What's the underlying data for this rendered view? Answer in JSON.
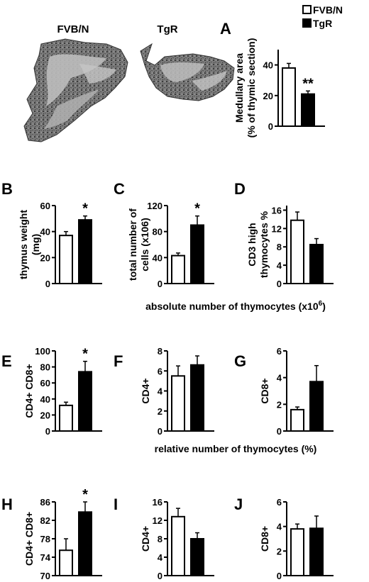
{
  "figure": {
    "image_labels": {
      "fvb": "FVB/N",
      "tgr": "TgR"
    },
    "legend": [
      "FVB/N",
      "TgR"
    ],
    "caption_absolute": "absolute number of thymocytes (x10",
    "caption_absolute_sup": "6",
    "caption_absolute_end": ")",
    "caption_relative": "relative number of thymocytes (%)"
  },
  "chart_data": [
    {
      "panel": "A",
      "type": "bar",
      "categories": [
        "FVB/N",
        "TgR"
      ],
      "values": [
        38,
        21
      ],
      "errors": [
        3,
        2
      ],
      "ylabel": [
        "Medullary area",
        "(% of thymic section)"
      ],
      "ylim": [
        0,
        50
      ],
      "ticks": [
        "0",
        "20",
        "40"
      ],
      "tick_values": [
        0,
        20,
        40
      ],
      "significance": "**",
      "sig_index": 1,
      "grid": false
    },
    {
      "panel": "B",
      "type": "bar",
      "categories": [
        "FVB/N",
        "TgR"
      ],
      "values": [
        37,
        49
      ],
      "errors": [
        3,
        3
      ],
      "ylabel": [
        "thymus weight",
        "(mg)"
      ],
      "ylim": [
        0,
        60
      ],
      "ticks": [
        "0",
        "20",
        "40",
        "60"
      ],
      "tick_values": [
        0,
        20,
        40,
        60
      ],
      "significance": "*",
      "sig_index": 1,
      "grid": false
    },
    {
      "panel": "C",
      "type": "bar",
      "categories": [
        "FVB/N",
        "TgR"
      ],
      "values": [
        43,
        90
      ],
      "errors": [
        4,
        14
      ],
      "ylabel": [
        "total number of",
        "cells (x106)"
      ],
      "ylim": [
        0,
        120
      ],
      "ticks": [
        "0",
        "40",
        "80",
        "120"
      ],
      "tick_values": [
        0,
        40,
        80,
        120
      ],
      "significance": "*",
      "sig_index": 1,
      "grid": false
    },
    {
      "panel": "D",
      "type": "bar",
      "categories": [
        "FVB/N",
        "TgR"
      ],
      "values": [
        13.8,
        8.5
      ],
      "errors": [
        1.8,
        1.3
      ],
      "ylabel": [
        "CD3 high",
        "thymocytes %"
      ],
      "ylim": [
        0,
        17
      ],
      "ticks": [
        "0",
        "4",
        "8",
        "12",
        "16"
      ],
      "tick_values": [
        0,
        4,
        8,
        12,
        16
      ],
      "significance": "",
      "sig_index": 1,
      "grid": false
    },
    {
      "panel": "E",
      "type": "bar",
      "categories": [
        "FVB/N",
        "TgR"
      ],
      "values": [
        32,
        74
      ],
      "errors": [
        4,
        13
      ],
      "ylabel": [
        "CD4+ CD8+"
      ],
      "ylim": [
        0,
        100
      ],
      "ticks": [
        "0",
        "20",
        "40",
        "60",
        "80",
        "100"
      ],
      "tick_values": [
        0,
        20,
        40,
        60,
        80,
        100
      ],
      "significance": "*",
      "sig_index": 1,
      "grid": false
    },
    {
      "panel": "F",
      "type": "bar",
      "categories": [
        "FVB/N",
        "TgR"
      ],
      "values": [
        5.5,
        6.6
      ],
      "errors": [
        1.0,
        0.9
      ],
      "ylabel": [
        "CD4+"
      ],
      "ylim": [
        0,
        8
      ],
      "ticks": [
        "0",
        "2",
        "4",
        "6",
        "8"
      ],
      "tick_values": [
        0,
        2,
        4,
        6,
        8
      ],
      "significance": "",
      "sig_index": 1,
      "grid": false
    },
    {
      "panel": "G",
      "type": "bar",
      "categories": [
        "FVB/N",
        "TgR"
      ],
      "values": [
        1.6,
        3.7
      ],
      "errors": [
        0.2,
        1.2
      ],
      "ylabel": [
        "CD8+"
      ],
      "ylim": [
        0,
        6
      ],
      "ticks": [
        "0",
        "2",
        "4",
        "6"
      ],
      "tick_values": [
        0,
        2,
        4,
        6
      ],
      "significance": "",
      "sig_index": 1,
      "grid": false
    },
    {
      "panel": "H",
      "type": "bar",
      "categories": [
        "FVB/N",
        "TgR"
      ],
      "values": [
        75.5,
        83.8
      ],
      "errors": [
        2.5,
        2.2
      ],
      "ylabel": [
        "CD4+ CD8+"
      ],
      "ylim": [
        70,
        86
      ],
      "ticks": [
        "70",
        "74",
        "78",
        "82",
        "86"
      ],
      "tick_values": [
        70,
        74,
        78,
        82,
        86
      ],
      "significance": "*",
      "sig_index": 1,
      "grid": false
    },
    {
      "panel": "I",
      "type": "bar",
      "categories": [
        "FVB/N",
        "TgR"
      ],
      "values": [
        12.8,
        8.0
      ],
      "errors": [
        1.8,
        1.3
      ],
      "ylabel": [
        "CD4+"
      ],
      "ylim": [
        0,
        16
      ],
      "ticks": [
        "0",
        "4",
        "8",
        "12",
        "16"
      ],
      "tick_values": [
        0,
        4,
        8,
        12,
        16
      ],
      "significance": "",
      "sig_index": 1,
      "grid": false
    },
    {
      "panel": "J",
      "type": "bar",
      "categories": [
        "FVB/N",
        "TgR"
      ],
      "values": [
        3.8,
        3.85
      ],
      "errors": [
        0.4,
        1.0
      ],
      "ylabel": [
        "CD8+"
      ],
      "ylim": [
        0,
        6
      ],
      "ticks": [
        "0",
        "2",
        "4",
        "6"
      ],
      "tick_values": [
        0,
        2,
        4,
        6
      ],
      "significance": "",
      "sig_index": 1,
      "grid": false
    }
  ],
  "colors": {
    "fvb": "#ffffff",
    "tgr": "#000000"
  }
}
